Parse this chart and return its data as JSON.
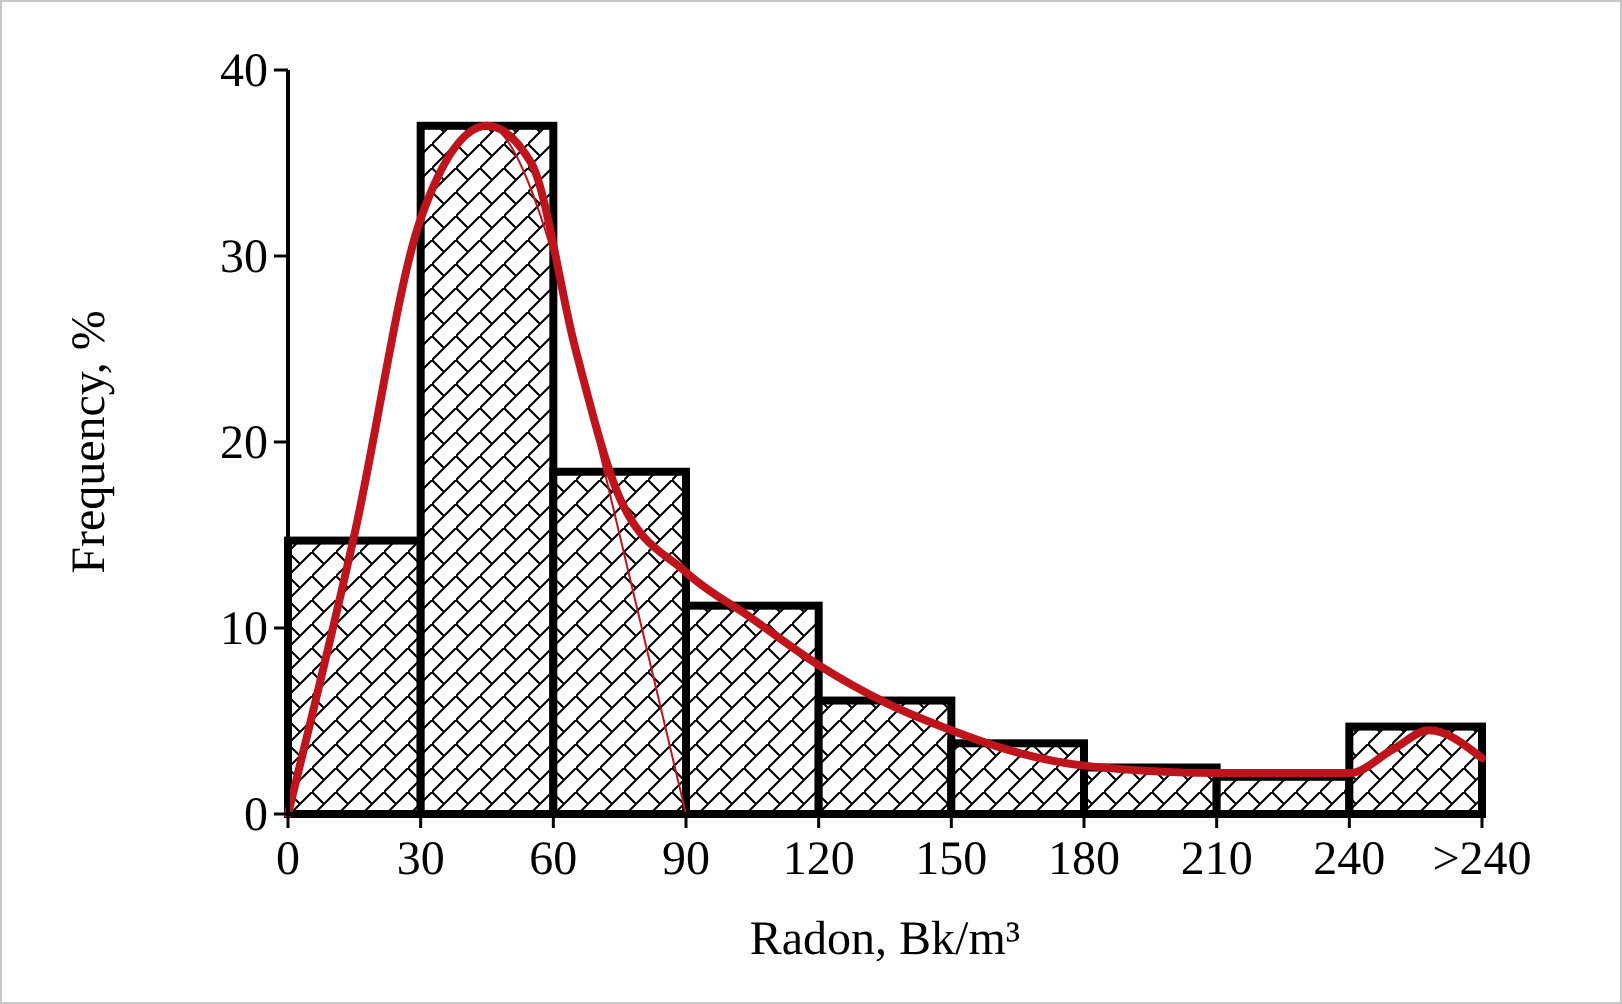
{
  "chart_data": {
    "type": "histogram",
    "xlabel": "Radon, Bk/m³",
    "ylabel": "Frequency, %",
    "bins": [
      0,
      30,
      60,
      90,
      120,
      150,
      180,
      210,
      240,
      270
    ],
    "values": [
      14.7,
      37,
      18.4,
      11.2,
      6.1,
      3.8,
      2.5,
      2.0,
      4.7
    ],
    "color": "#000000",
    "series": [
      {
        "type": "line",
        "color": "#c0141c",
        "x": [
          0,
          15,
          30,
          45,
          55,
          65,
          75,
          90,
          105,
          120,
          135,
          150,
          165,
          180,
          210,
          240,
          250,
          258,
          270
        ],
        "values": [
          0,
          15,
          32,
          37,
          35,
          25,
          17,
          13,
          10.5,
          8,
          6,
          4.5,
          3.3,
          2.6,
          2.2,
          2.2,
          3.5,
          4.5,
          3
        ]
      },
      {
        "type": "line",
        "color": "#c0141c",
        "x": [
          0,
          15,
          30,
          45,
          60,
          70,
          80,
          90
        ],
        "values": [
          0,
          15,
          32,
          37,
          30,
          20,
          10,
          0
        ]
      }
    ],
    "xlim": [
      0,
      270
    ],
    "xticks": [
      0,
      30,
      60,
      90,
      120,
      150,
      180,
      210,
      240,
      {
        "value": 270,
        "label": ">240"
      }
    ],
    "ylim": [
      0,
      40
    ],
    "yticks": [
      0,
      10,
      20,
      30,
      40
    ],
    "grid": false
  }
}
